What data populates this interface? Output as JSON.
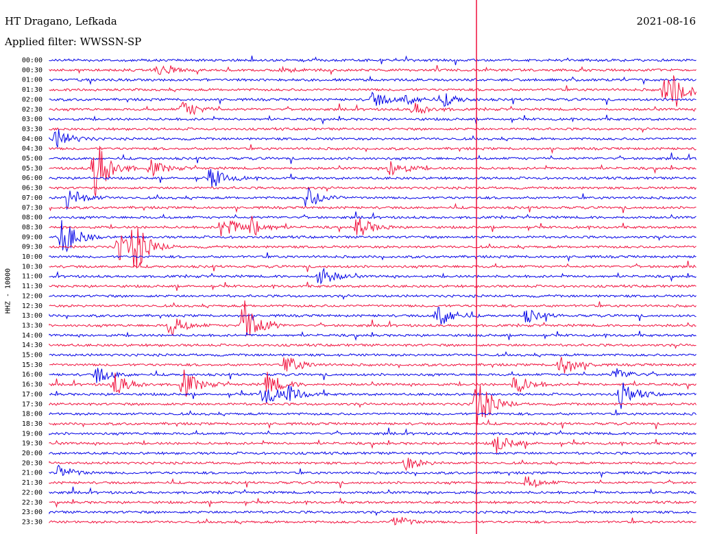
{
  "header": {
    "station": "HT Dragano, Lefkada",
    "date": "2021-08-16",
    "filter": "Applied filter: WWSSN-SP"
  },
  "side_label": "HHZ - 10000",
  "chart_data": {
    "type": "line",
    "title": "HT Dragano, Lefkada",
    "date": "2021-08-16",
    "filter": "WWSSN-SP",
    "channel": "HHZ",
    "scale": 10000,
    "trace_interval_minutes": 30,
    "colors": {
      "blue": "#0000e6",
      "red": "#f0103c",
      "marker": "#f0103c"
    },
    "rows": [
      "00:00",
      "00:30",
      "01:00",
      "01:30",
      "02:00",
      "02:30",
      "03:00",
      "03:30",
      "04:00",
      "04:30",
      "05:00",
      "05:30",
      "06:00",
      "06:30",
      "07:00",
      "07:30",
      "08:00",
      "08:30",
      "09:00",
      "09:30",
      "10:00",
      "10:30",
      "11:00",
      "11:30",
      "12:00",
      "12:30",
      "13:00",
      "13:30",
      "14:00",
      "14:30",
      "15:00",
      "15:30",
      "16:00",
      "16:30",
      "17:00",
      "17:30",
      "18:00",
      "18:30",
      "19:00",
      "19:30",
      "20:00",
      "20:30",
      "21:00",
      "21:30",
      "22:00",
      "22:30",
      "23:00",
      "23:30"
    ],
    "current_time_marker_minute": 19.8,
    "events": [
      {
        "row": "00:30",
        "minute": 5.0,
        "amp": 8
      },
      {
        "row": "00:30",
        "minute": 10.8,
        "amp": 4
      },
      {
        "row": "01:30",
        "minute": 28.5,
        "amp": 20
      },
      {
        "row": "01:30",
        "minute": 29.0,
        "amp": 22
      },
      {
        "row": "02:00",
        "minute": 15.0,
        "amp": 12
      },
      {
        "row": "02:00",
        "minute": 16.5,
        "amp": 8
      },
      {
        "row": "02:00",
        "minute": 18.3,
        "amp": 9
      },
      {
        "row": "02:30",
        "minute": 6.2,
        "amp": 14
      },
      {
        "row": "02:30",
        "minute": 16.9,
        "amp": 10
      },
      {
        "row": "04:00",
        "minute": 0.3,
        "amp": 16
      },
      {
        "row": "05:30",
        "minute": 2.1,
        "amp": 50
      },
      {
        "row": "05:30",
        "minute": 4.7,
        "amp": 12
      },
      {
        "row": "05:30",
        "minute": 15.8,
        "amp": 14
      },
      {
        "row": "06:00",
        "minute": 7.5,
        "amp": 16
      },
      {
        "row": "07:00",
        "minute": 0.8,
        "amp": 18
      },
      {
        "row": "07:00",
        "minute": 11.9,
        "amp": 18
      },
      {
        "row": "08:30",
        "minute": 8.0,
        "amp": 20
      },
      {
        "row": "08:30",
        "minute": 9.3,
        "amp": 16
      },
      {
        "row": "08:30",
        "minute": 14.3,
        "amp": 16
      },
      {
        "row": "09:00",
        "minute": 0.6,
        "amp": 30
      },
      {
        "row": "09:30",
        "minute": 3.2,
        "amp": 22
      },
      {
        "row": "09:30",
        "minute": 3.9,
        "amp": 35
      },
      {
        "row": "11:00",
        "minute": 12.5,
        "amp": 16
      },
      {
        "row": "13:00",
        "minute": 18.0,
        "amp": 20
      },
      {
        "row": "13:00",
        "minute": 22.1,
        "amp": 10
      },
      {
        "row": "13:30",
        "minute": 5.6,
        "amp": 16
      },
      {
        "row": "13:30",
        "minute": 9.0,
        "amp": 45
      },
      {
        "row": "15:30",
        "minute": 11.0,
        "amp": 14
      },
      {
        "row": "15:30",
        "minute": 23.7,
        "amp": 18
      },
      {
        "row": "16:00",
        "minute": 2.2,
        "amp": 12
      },
      {
        "row": "16:00",
        "minute": 26.2,
        "amp": 10
      },
      {
        "row": "16:30",
        "minute": 3.0,
        "amp": 18
      },
      {
        "row": "16:30",
        "minute": 6.2,
        "amp": 22
      },
      {
        "row": "16:30",
        "minute": 10.1,
        "amp": 18
      },
      {
        "row": "16:30",
        "minute": 21.6,
        "amp": 16
      },
      {
        "row": "17:00",
        "minute": 9.9,
        "amp": 18
      },
      {
        "row": "17:00",
        "minute": 11.0,
        "amp": 12
      },
      {
        "row": "17:00",
        "minute": 26.5,
        "amp": 20
      },
      {
        "row": "17:30",
        "minute": 19.8,
        "amp": 40
      },
      {
        "row": "19:30",
        "minute": 20.7,
        "amp": 14
      },
      {
        "row": "20:30",
        "minute": 16.5,
        "amp": 10
      },
      {
        "row": "21:00",
        "minute": 0.4,
        "amp": 12
      },
      {
        "row": "21:30",
        "minute": 22.1,
        "amp": 10
      },
      {
        "row": "23:30",
        "minute": 16.0,
        "amp": 10
      }
    ]
  }
}
